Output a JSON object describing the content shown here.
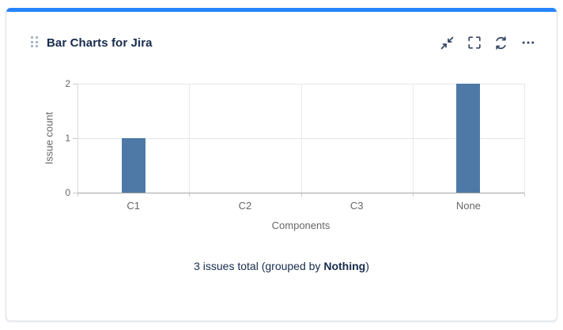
{
  "card": {
    "title": "Bar Charts for Jira",
    "accent_color": "#2684FF",
    "toolbar": {
      "collapse_icon": "collapse-icon",
      "fullscreen_icon": "fullscreen-icon",
      "refresh_icon": "refresh-icon",
      "more_icon": "more-icon"
    }
  },
  "chart_data": {
    "type": "bar",
    "title": "",
    "categories": [
      "C1",
      "C2",
      "C3",
      "None"
    ],
    "values": [
      1,
      0,
      0,
      2
    ],
    "xlabel": "Components",
    "ylabel": "Issue count",
    "yticks": [
      0,
      1,
      2
    ],
    "ylim": [
      0,
      2
    ],
    "bar_color": "#4e79a7",
    "grid": true,
    "legend": "none"
  },
  "footer": {
    "text_prefix": "3 issues total (grouped by ",
    "group_by": "Nothing",
    "text_suffix": ")"
  },
  "colors": {
    "accent": "#2684FF",
    "bar": "#4e79a7",
    "heading_text": "#172B4D",
    "icon": "#344563",
    "axis_text": "#666666"
  }
}
